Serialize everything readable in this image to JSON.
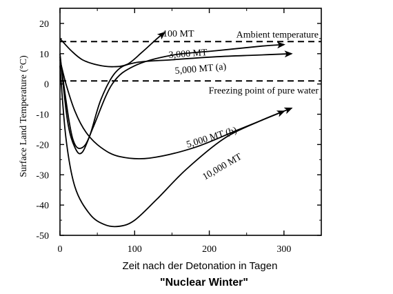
{
  "chart_data": {
    "type": "line",
    "xlabel": "Zeit nach der Detonation in Tagen",
    "ylabel": "Surface Land Temperature   (°C)",
    "subtitle": "\"Nuclear Winter\"",
    "xlim": [
      0,
      350
    ],
    "ylim": [
      -50,
      25
    ],
    "xticks": [
      "0",
      "100",
      "200",
      "300"
    ],
    "yticks": [
      "20",
      "10",
      "0",
      "-10",
      "-20",
      "-30",
      "-40",
      "-50"
    ],
    "reference_lines": [
      {
        "label": "Ambient temperature",
        "y": 14
      },
      {
        "label": "Freezing point of pure water",
        "y": 1
      }
    ],
    "series": [
      {
        "name": "100 MT",
        "x": [
          0,
          15,
          30,
          50,
          70,
          90,
          110,
          130,
          140
        ],
        "y": [
          15,
          11,
          8,
          6.3,
          5.7,
          6.5,
          10.5,
          15,
          17
        ]
      },
      {
        "name": "3,000 MT",
        "x": [
          0,
          8,
          20,
          35,
          55,
          80,
          120,
          180,
          240,
          300
        ],
        "y": [
          8,
          0,
          -9,
          -16,
          -21,
          -24,
          -24.5,
          -21,
          -15,
          -9
        ]
      },
      {
        "name": "5,000 MT (a)",
        "x": [
          0,
          10,
          20,
          30,
          45,
          70,
          100,
          150,
          210,
          270,
          300
        ],
        "y": [
          10,
          -12,
          -21,
          -22.5,
          -14,
          0,
          6,
          9.5,
          11,
          12.5,
          13
        ]
      },
      {
        "name": "5,000 MT (b)",
        "x": [
          0,
          12,
          20,
          30,
          40,
          55,
          75,
          100,
          150,
          210,
          260,
          310
        ],
        "y": [
          9,
          -12,
          -20,
          -21,
          -17,
          -5,
          4,
          7,
          8,
          9,
          9.5,
          10
        ]
      },
      {
        "name": "10,000 MT",
        "x": [
          0,
          8,
          20,
          40,
          60,
          80,
          100,
          130,
          170,
          220,
          270,
          310
        ],
        "y": [
          6,
          -18,
          -34,
          -43,
          -46.5,
          -47,
          -45,
          -38,
          -28,
          -18,
          -12,
          -8
        ]
      }
    ]
  }
}
